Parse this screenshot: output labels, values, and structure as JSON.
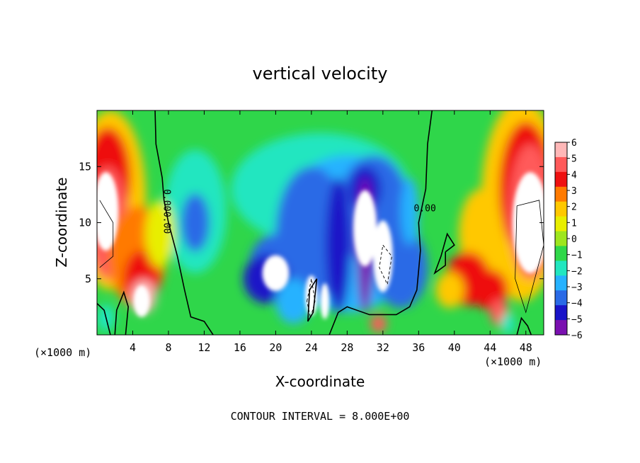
{
  "chart_data": {
    "type": "heatmap",
    "title": "vertical velocity",
    "xlabel": "X-coordinate",
    "ylabel": "Z-coordinate",
    "x_unit_left": "(×1000 m)",
    "x_unit_right": "(×1000 m)",
    "footer": "CONTOUR INTERVAL = 8.000E+00",
    "xlim": [
      0,
      50
    ],
    "ylim": [
      0,
      20
    ],
    "x_ticks": [
      4,
      8,
      12,
      16,
      20,
      24,
      28,
      32,
      36,
      40,
      44,
      48
    ],
    "y_ticks": [
      5,
      10,
      15
    ],
    "colorbar": {
      "levels": [
        6,
        5,
        4,
        3,
        2,
        1,
        0,
        -1,
        -2,
        -3,
        -4,
        -5,
        -6
      ],
      "labels": [
        "6",
        "5",
        "4",
        "3",
        "2",
        "1",
        "0",
        "−1",
        "−2",
        "−3",
        "−4",
        "−5",
        "−6"
      ],
      "colors": [
        "#ffb8b8",
        "#ff5a5a",
        "#ee1111",
        "#ff7a00",
        "#ffc800",
        "#e8ee00",
        "#9ee61e",
        "#30d84a",
        "#22e6c0",
        "#26b2ff",
        "#2a6ae6",
        "#1a14c8",
        "#7a10b0"
      ]
    },
    "contour_labels": [
      "0.00",
      "0.00",
      "0.00"
    ],
    "features": [
      {
        "x": 2,
        "z": 15,
        "w": 6,
        "kind": "updraft"
      },
      {
        "x": 5,
        "z": 7,
        "w": 5,
        "kind": "updraft"
      },
      {
        "x": 47,
        "z": 14,
        "w": 6,
        "kind": "updraft"
      },
      {
        "x": 42,
        "z": 5,
        "w": 4,
        "kind": "updraft"
      },
      {
        "x": 11,
        "z": 11,
        "w": -4,
        "kind": "downdraft"
      },
      {
        "x": 30,
        "z": 11,
        "w": -6,
        "kind": "downdraft"
      },
      {
        "x": 20,
        "z": 5,
        "w": -6,
        "kind": "downdraft"
      },
      {
        "x": 25,
        "z": 8,
        "w": -5,
        "kind": "downdraft"
      }
    ]
  }
}
